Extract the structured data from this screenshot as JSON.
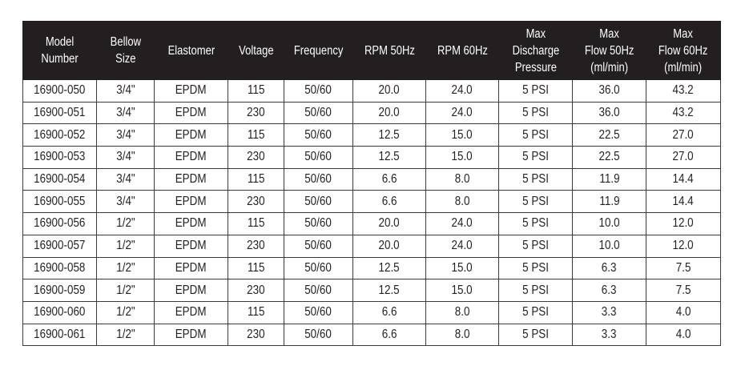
{
  "table": {
    "headers": [
      "Model\nNumber",
      "Bellow\nSize",
      "Elastomer",
      "Voltage",
      "Frequency",
      "RPM 50Hz",
      "RPM 60Hz",
      "Max\nDischarge\nPressure",
      "Max\nFlow 50Hz\n(ml/min)",
      "Max\nFlow 60Hz\n(ml/min)"
    ],
    "rows": [
      [
        "16900-050",
        "3/4\"",
        "EPDM",
        "115",
        "50/60",
        "20.0",
        "24.0",
        "5 PSI",
        "36.0",
        "43.2"
      ],
      [
        "16900-051",
        "3/4\"",
        "EPDM",
        "230",
        "50/60",
        "20.0",
        "24.0",
        "5 PSI",
        "36.0",
        "43.2"
      ],
      [
        "16900-052",
        "3/4\"",
        "EPDM",
        "115",
        "50/60",
        "12.5",
        "15.0",
        "5 PSI",
        "22.5",
        "27.0"
      ],
      [
        "16900-053",
        "3/4\"",
        "EPDM",
        "230",
        "50/60",
        "12.5",
        "15.0",
        "5 PSI",
        "22.5",
        "27.0"
      ],
      [
        "16900-054",
        "3/4\"",
        "EPDM",
        "115",
        "50/60",
        "6.6",
        "8.0",
        "5 PSI",
        "11.9",
        "14.4"
      ],
      [
        "16900-055",
        "3/4\"",
        "EPDM",
        "230",
        "50/60",
        "6.6",
        "8.0",
        "5 PSI",
        "11.9",
        "14.4"
      ],
      [
        "16900-056",
        "1/2\"",
        "EPDM",
        "115",
        "50/60",
        "20.0",
        "24.0",
        "5 PSI",
        "10.0",
        "12.0"
      ],
      [
        "16900-057",
        "1/2\"",
        "EPDM",
        "230",
        "50/60",
        "20.0",
        "24.0",
        "5 PSI",
        "10.0",
        "12.0"
      ],
      [
        "16900-058",
        "1/2\"",
        "EPDM",
        "115",
        "50/60",
        "12.5",
        "15.0",
        "5 PSI",
        "6.3",
        "7.5"
      ],
      [
        "16900-059",
        "1/2\"",
        "EPDM",
        "230",
        "50/60",
        "12.5",
        "15.0",
        "5 PSI",
        "6.3",
        "7.5"
      ],
      [
        "16900-060",
        "1/2\"",
        "EPDM",
        "115",
        "50/60",
        "6.6",
        "8.0",
        "5 PSI",
        "3.3",
        "4.0"
      ],
      [
        "16900-061",
        "1/2\"",
        "EPDM",
        "230",
        "50/60",
        "6.6",
        "8.0",
        "5 PSI",
        "3.3",
        "4.0"
      ]
    ]
  }
}
